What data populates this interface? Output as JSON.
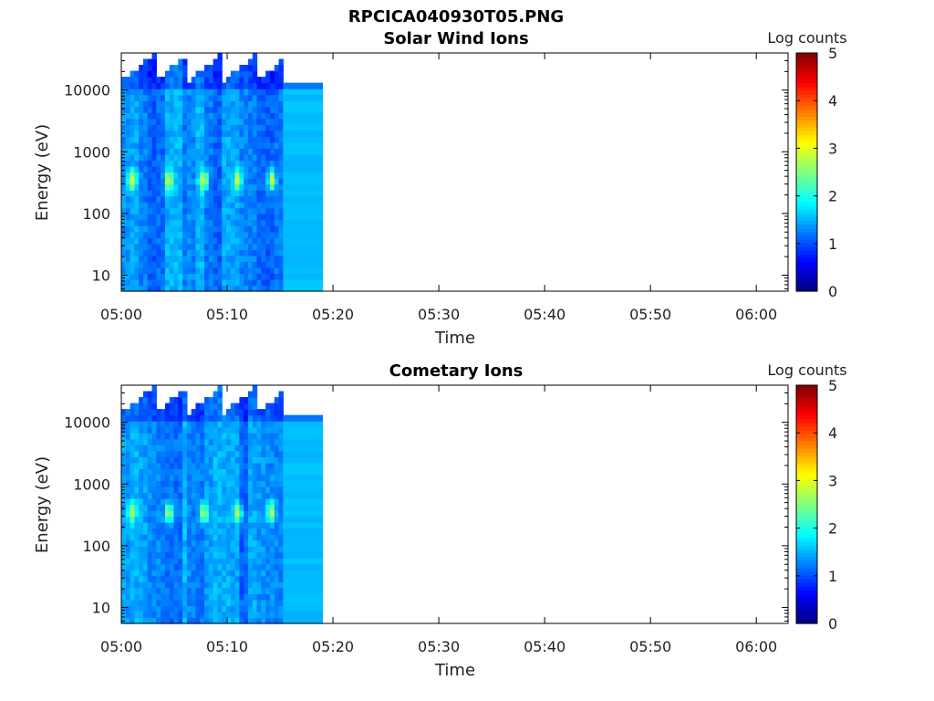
{
  "figure_title": "RPCICA040930T05.PNG",
  "chart_data": [
    {
      "type": "heatmap",
      "title": "Solar Wind Ions",
      "xlabel": "Time",
      "ylabel": "Energy (eV)",
      "x_ticks": [
        "05:00",
        "05:10",
        "05:20",
        "05:30",
        "05:40",
        "05:50",
        "06:00"
      ],
      "x_range_minutes": [
        0,
        63
      ],
      "data_extent_minutes": [
        0,
        19
      ],
      "y_scale": "log",
      "y_ticks": [
        "10",
        "100",
        "1000",
        "10000"
      ],
      "y_range_eV": [
        5.5,
        40000
      ],
      "colorbar": {
        "label": "Log counts",
        "ticks": [
          "0",
          "1",
          "2",
          "3",
          "4",
          "5"
        ],
        "range": [
          0,
          5
        ],
        "colormap": "jet"
      },
      "sweep_period_minutes": 3.2,
      "peak_energy_eV": 350,
      "peak_times_minutes": [
        1.0,
        4.5,
        7.8,
        11.0,
        14.2
      ],
      "peak_log_counts": 3.0,
      "top_energy_after_15_3_min_eV": 13500
    },
    {
      "type": "heatmap",
      "title": "Cometary Ions",
      "xlabel": "Time",
      "ylabel": "Energy (eV)",
      "x_ticks": [
        "05:00",
        "05:10",
        "05:20",
        "05:30",
        "05:40",
        "05:50",
        "06:00"
      ],
      "x_range_minutes": [
        0,
        63
      ],
      "data_extent_minutes": [
        0,
        19
      ],
      "y_scale": "log",
      "y_ticks": [
        "10",
        "100",
        "1000",
        "10000"
      ],
      "y_range_eV": [
        5.5,
        40000
      ],
      "colorbar": {
        "label": "Log counts",
        "ticks": [
          "0",
          "1",
          "2",
          "3",
          "4",
          "5"
        ],
        "range": [
          0,
          5
        ],
        "colormap": "jet"
      },
      "sweep_period_minutes": 3.2,
      "peak_energy_eV": 350,
      "peak_times_minutes": [
        1.0,
        4.5,
        7.8,
        11.0,
        14.2
      ],
      "peak_log_counts": 2.8,
      "top_energy_after_15_3_min_eV": 13500
    }
  ]
}
